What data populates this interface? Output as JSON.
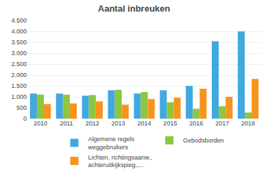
{
  "chart_data": {
    "type": "bar",
    "title": "Aantal inbreuken",
    "categories": [
      "2010",
      "2011",
      "2012",
      "2013",
      "2014",
      "2015",
      "2016",
      "2017",
      "2018"
    ],
    "series": [
      {
        "name": "Algemene regels\nweggebruikers",
        "color": "#3fa9e0",
        "values": [
          1150,
          1150,
          1050,
          1300,
          1150,
          1300,
          1500,
          3550,
          4000
        ]
      },
      {
        "name": "Gebodsborden",
        "color": "#8dc63f",
        "values": [
          1100,
          1100,
          1080,
          1320,
          1220,
          750,
          450,
          570,
          280
        ]
      },
      {
        "name": "Lichten, richtingsaanw.,\nachteruitkijkspieg.,...",
        "color": "#f7941d",
        "values": [
          670,
          700,
          790,
          640,
          900,
          960,
          1370,
          1000,
          1820
        ]
      }
    ],
    "ylim": [
      0,
      4500
    ],
    "yticks": [
      0,
      500,
      {
        "value": 1000,
        "label": "1.000"
      },
      {
        "value": 1500,
        "label": "1.500"
      },
      {
        "value": 2000,
        "label": "2.000"
      },
      {
        "value": 2500,
        "label": "2.500"
      },
      {
        "value": 3000,
        "label": "3.000"
      },
      {
        "value": 3500,
        "label": "3.500"
      },
      {
        "value": 4000,
        "label": "4.000"
      },
      {
        "value": 4500,
        "label": "4.500"
      }
    ],
    "grid": true,
    "legend": "bottom"
  }
}
